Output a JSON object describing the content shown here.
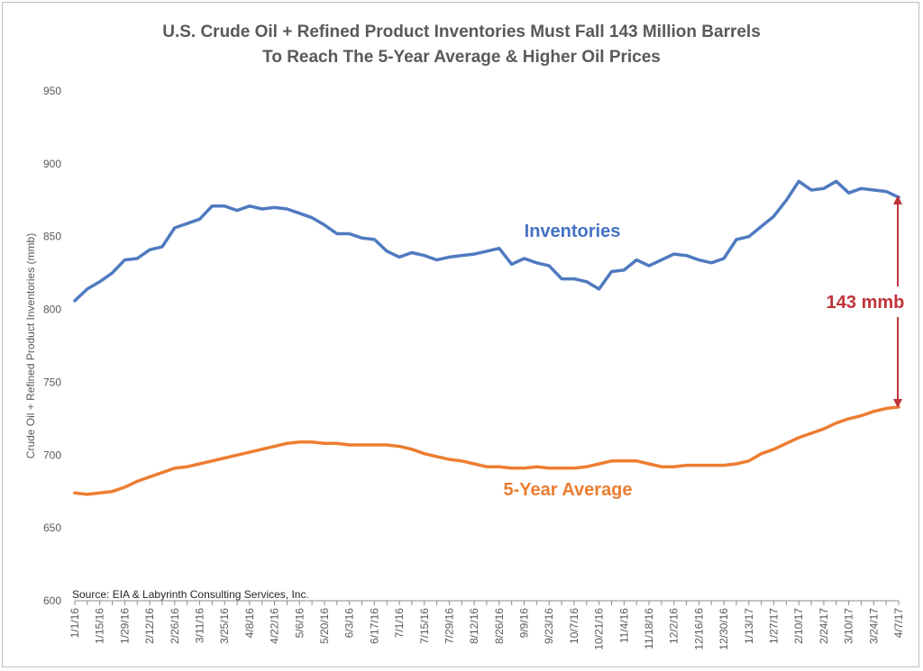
{
  "chart_data": {
    "type": "line",
    "title_line1": "U.S. Crude Oil + Refined Product Inventories Must Fall 143 Million Barrels",
    "title_line2": "To Reach The 5-Year Average & Higher Oil Prices",
    "ylabel": "Crude Oil + Refined Product Inventories (mmb)",
    "xlabel": "",
    "ylim": [
      600,
      950
    ],
    "yticks": [
      600,
      650,
      700,
      750,
      800,
      850,
      900,
      950
    ],
    "grid": false,
    "x_dates": [
      "1/1/16",
      "1/8/16",
      "1/15/16",
      "1/22/16",
      "1/29/16",
      "2/5/16",
      "2/12/16",
      "2/19/16",
      "2/26/16",
      "3/4/16",
      "3/11/16",
      "3/18/16",
      "3/25/16",
      "4/1/16",
      "4/8/16",
      "4/15/16",
      "4/22/16",
      "4/29/16",
      "5/6/16",
      "5/13/16",
      "5/20/16",
      "5/27/16",
      "6/3/16",
      "6/10/16",
      "6/17/16",
      "6/24/16",
      "7/1/16",
      "7/8/16",
      "7/15/16",
      "7/22/16",
      "7/29/16",
      "8/5/16",
      "8/12/16",
      "8/19/16",
      "8/26/16",
      "9/2/16",
      "9/9/16",
      "9/16/16",
      "9/23/16",
      "9/30/16",
      "10/7/16",
      "10/14/16",
      "10/21/16",
      "10/28/16",
      "11/4/16",
      "11/11/16",
      "11/18/16",
      "11/25/16",
      "12/2/16",
      "12/9/16",
      "12/16/16",
      "12/23/16",
      "12/30/16",
      "1/6/17",
      "1/13/17",
      "1/20/17",
      "1/27/17",
      "2/3/17",
      "2/10/17",
      "2/17/17",
      "2/24/17",
      "3/3/17",
      "3/10/17",
      "3/17/17",
      "3/24/17",
      "3/31/17",
      "4/7/17"
    ],
    "x_tick_labels": [
      "1/1/16",
      "1/15/16",
      "1/29/16",
      "2/12/16",
      "2/26/16",
      "3/11/16",
      "3/25/16",
      "4/8/16",
      "4/22/16",
      "5/6/16",
      "5/20/16",
      "6/3/16",
      "6/17/16",
      "7/1/16",
      "7/15/16",
      "7/29/16",
      "8/12/16",
      "8/26/16",
      "9/9/16",
      "9/23/16",
      "10/7/16",
      "10/21/16",
      "11/4/16",
      "11/18/16",
      "12/2/16",
      "12/16/16",
      "12/30/16",
      "1/13/17",
      "1/27/17",
      "2/10/17",
      "2/24/17",
      "3/10/17",
      "3/24/17",
      "4/7/17"
    ],
    "series": [
      {
        "name": "Inventories",
        "color": "#4f7ac0",
        "values": [
          806,
          814,
          819,
          825,
          834,
          835,
          841,
          843,
          856,
          859,
          862,
          871,
          871,
          868,
          871,
          869,
          870,
          869,
          866,
          863,
          858,
          852,
          852,
          849,
          848,
          840,
          836,
          839,
          837,
          834,
          836,
          837,
          838,
          840,
          842,
          831,
          835,
          832,
          830,
          821,
          821,
          819,
          814,
          826,
          827,
          834,
          830,
          834,
          838,
          837,
          834,
          832,
          835,
          848,
          850,
          857,
          864,
          875,
          888,
          882,
          883,
          888,
          880,
          883,
          882,
          881,
          877
        ]
      },
      {
        "name": "5-Year Average",
        "color": "#ed7d31",
        "values": [
          674,
          673,
          674,
          675,
          678,
          682,
          685,
          688,
          691,
          692,
          694,
          696,
          698,
          700,
          702,
          704,
          706,
          708,
          709,
          709,
          708,
          708,
          707,
          707,
          707,
          707,
          706,
          704,
          701,
          699,
          697,
          696,
          694,
          692,
          692,
          691,
          691,
          692,
          691,
          691,
          691,
          692,
          694,
          696,
          696,
          696,
          694,
          692,
          692,
          693,
          693,
          693,
          693,
          694,
          696,
          701,
          704,
          708,
          712,
          715,
          718,
          722,
          725,
          727,
          730,
          732,
          733
        ]
      }
    ],
    "annotations": {
      "inventories_label": "Inventories",
      "average_label": "5-Year Average",
      "gap_label": "143 mmb",
      "gap_color": "#c0343a",
      "source": "Source: EIA & Labyrinth Consulting Services, Inc."
    }
  }
}
